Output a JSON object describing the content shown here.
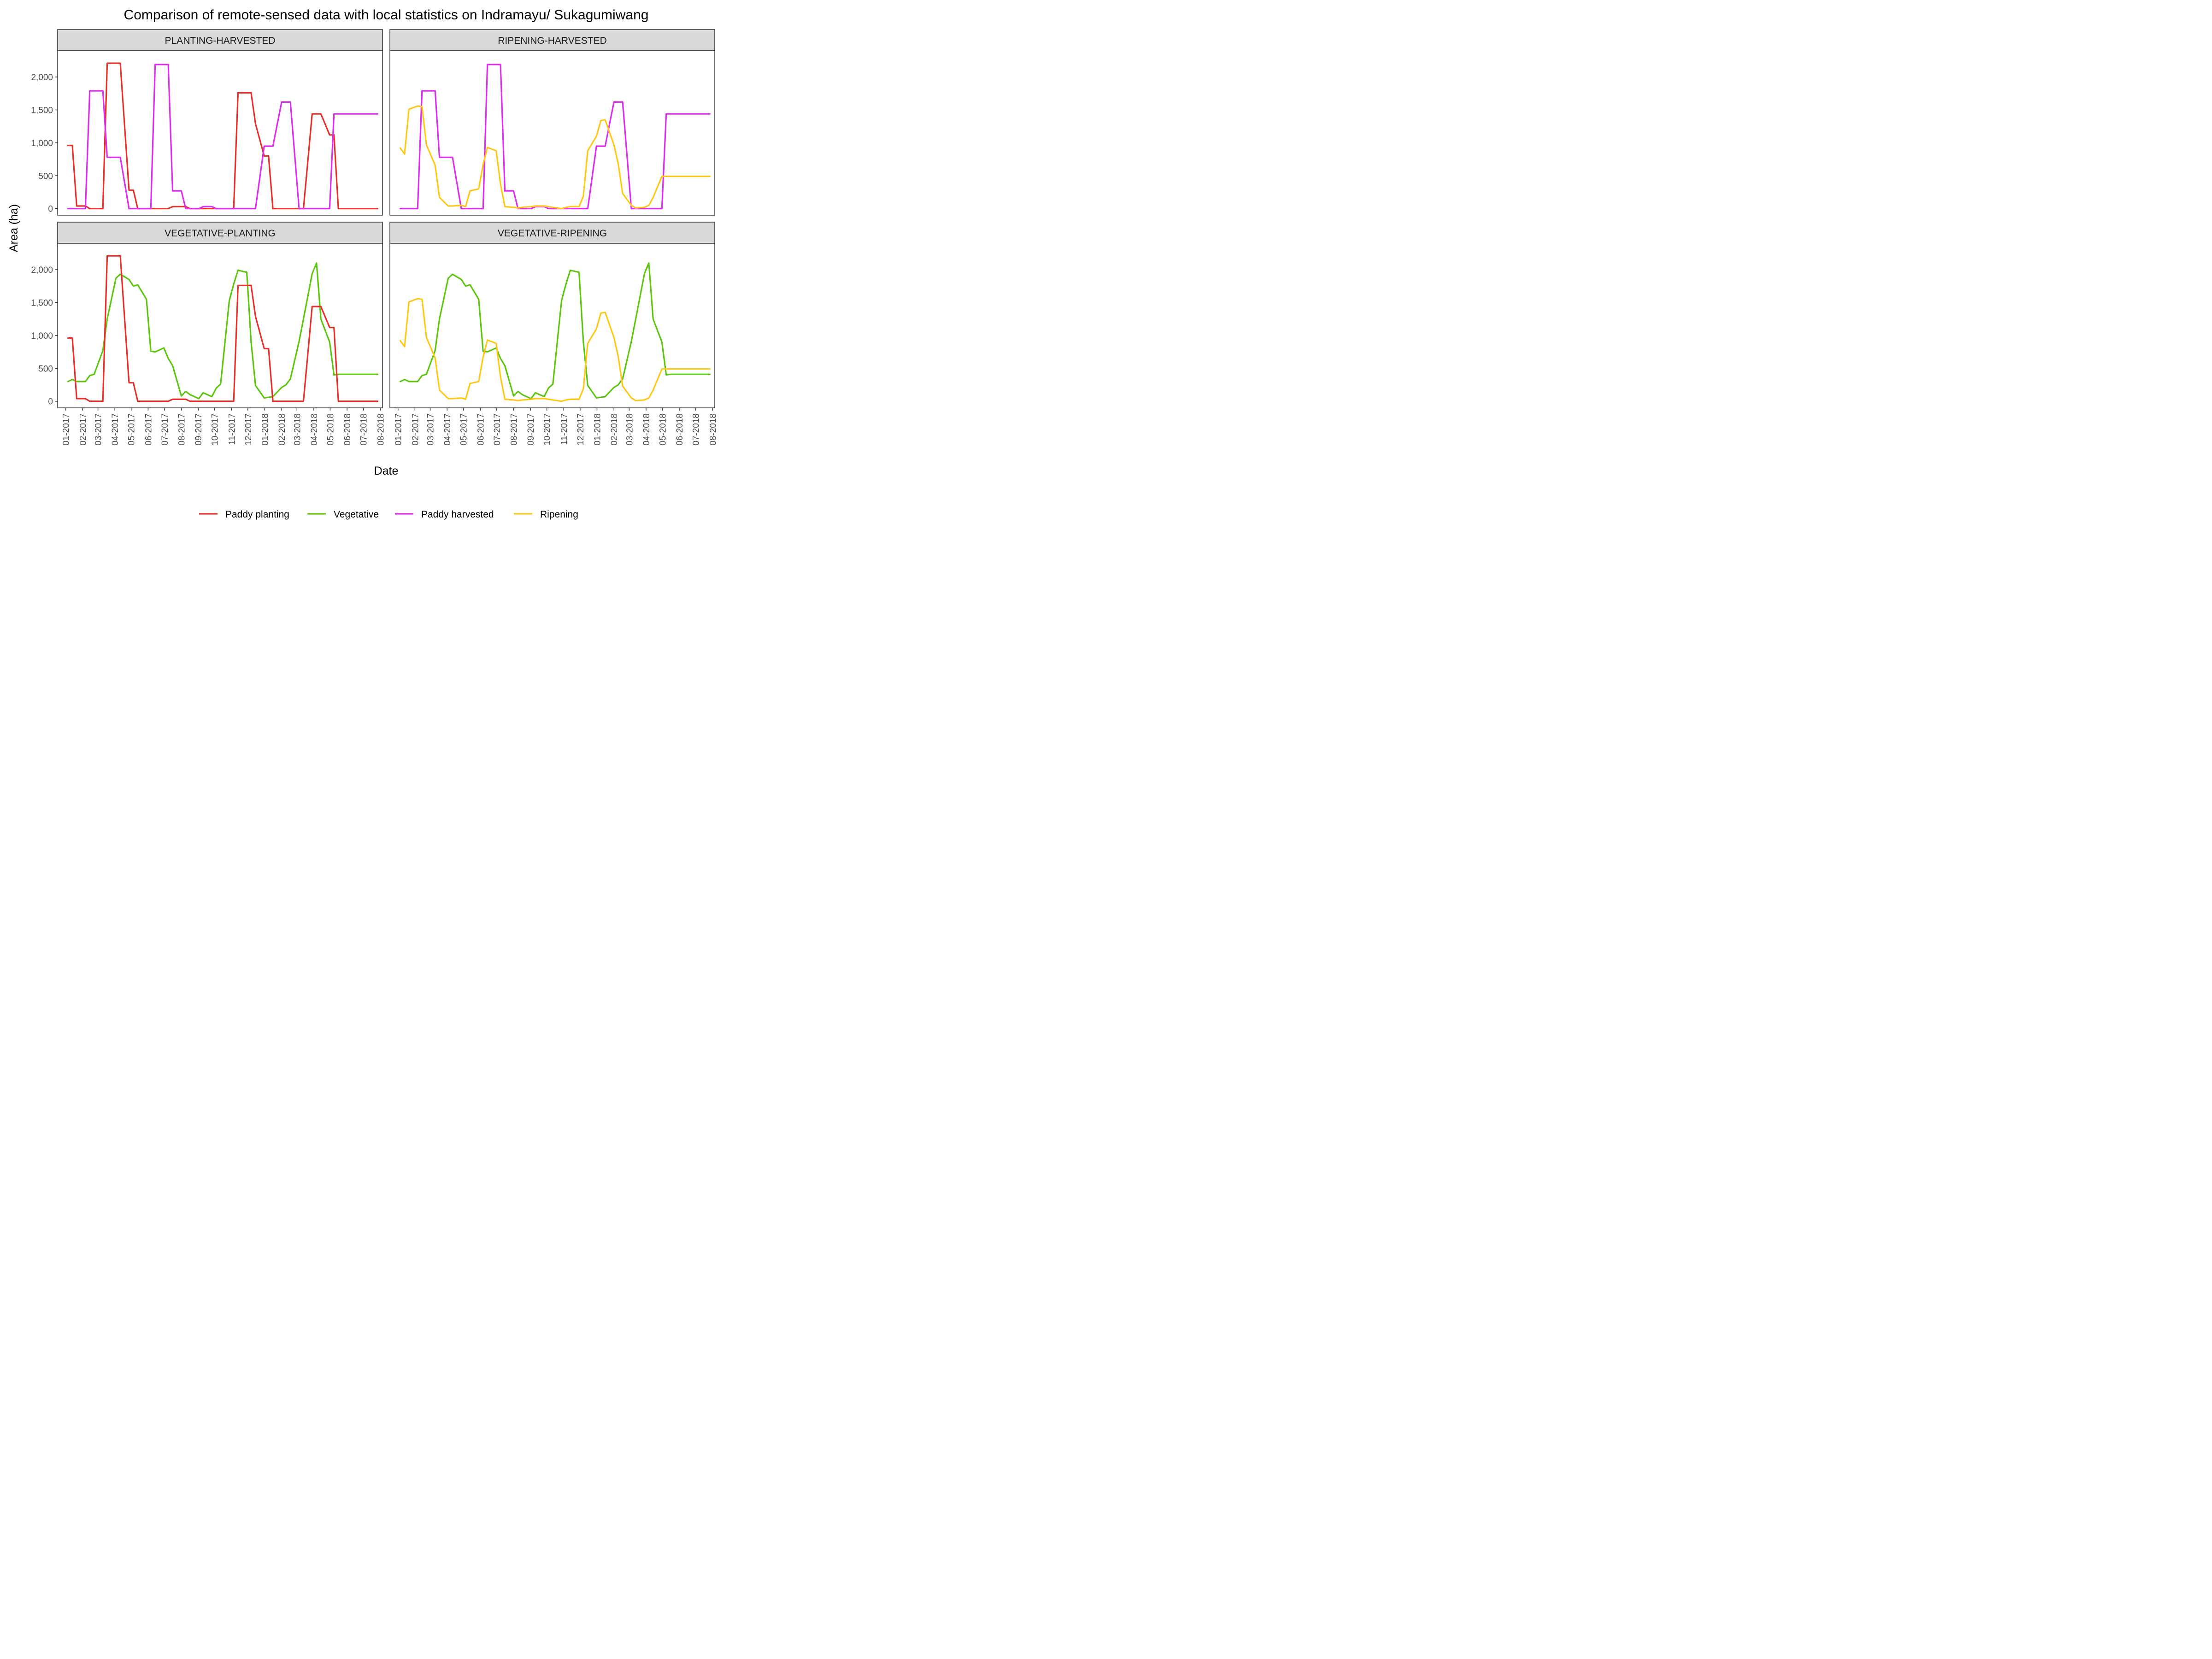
{
  "chart_data": {
    "type": "line",
    "title": "Comparison of remote-sensed data with local statistics on Indramayu/ Sukagumiwang",
    "xlabel": "Date",
    "ylabel": "Area (ha)",
    "ylim": [
      -100,
      2400
    ],
    "y_ticks": [
      0,
      500,
      1000,
      1500,
      2000
    ],
    "y_tick_labels": [
      "0",
      "500",
      "1,000",
      "1,500",
      "2,000"
    ],
    "x_ticks": [
      "2017-01-01",
      "2017-02-01",
      "2017-03-01",
      "2017-04-01",
      "2017-05-01",
      "2017-06-01",
      "2017-07-01",
      "2017-08-01",
      "2017-09-01",
      "2017-10-01",
      "2017-11-01",
      "2017-12-01",
      "2018-01-01",
      "2018-02-01",
      "2018-03-01",
      "2018-04-01",
      "2018-05-01",
      "2018-06-01",
      "2018-07-01",
      "2018-08-01"
    ],
    "x_tick_labels": [
      "01-2017",
      "02-2017",
      "03-2017",
      "04-2017",
      "05-2017",
      "06-2017",
      "07-2017",
      "08-2017",
      "09-2017",
      "10-2017",
      "11-2017",
      "12-2017",
      "01-2018",
      "02-2018",
      "03-2018",
      "04-2018",
      "05-2018",
      "06-2018",
      "07-2018",
      "08-2018"
    ],
    "xlim": [
      "2016-12-17",
      "2018-08-05"
    ],
    "grid": false,
    "legend_position": "bottom",
    "series_styles": {
      "Paddy planting": "#E8302A",
      "Vegetative": "#5CC610",
      "Paddy harvested": "#DD2EEE",
      "Ripening": "#FFC819"
    },
    "legend_order": [
      "Paddy planting",
      "Vegetative",
      "Paddy harvested",
      "Ripening"
    ],
    "series": [
      {
        "name": "Paddy planting",
        "x": [
          "2017-01-05",
          "2017-01-13",
          "2017-01-21",
          "2017-02-06",
          "2017-02-14",
          "2017-02-22",
          "2017-03-10",
          "2017-03-18",
          "2017-04-03",
          "2017-04-11",
          "2017-04-27",
          "2017-05-05",
          "2017-05-13",
          "2017-05-29",
          "2017-06-06",
          "2017-06-14",
          "2017-06-30",
          "2017-07-08",
          "2017-07-16",
          "2017-08-01",
          "2017-08-09",
          "2017-08-17",
          "2017-09-02",
          "2017-09-10",
          "2017-09-26",
          "2017-10-04",
          "2017-10-12",
          "2017-10-28",
          "2017-11-05",
          "2017-11-13",
          "2017-11-29",
          "2017-12-07",
          "2017-12-15",
          "2017-12-31",
          "2018-01-08",
          "2018-01-16",
          "2018-02-01",
          "2018-02-09",
          "2018-02-17",
          "2018-03-05",
          "2018-03-13",
          "2018-03-29",
          "2018-04-06",
          "2018-04-14",
          "2018-04-30",
          "2018-05-08",
          "2018-05-16",
          "2018-06-01",
          "2018-06-09",
          "2018-06-17",
          "2018-07-03",
          "2018-07-11",
          "2018-07-27"
        ],
        "values": [
          960,
          960,
          40,
          40,
          0,
          0,
          0,
          2210,
          2210,
          2210,
          280,
          280,
          0,
          0,
          0,
          0,
          0,
          0,
          30,
          30,
          30,
          0,
          0,
          0,
          0,
          0,
          0,
          0,
          0,
          1760,
          1760,
          1760,
          1290,
          800,
          800,
          0,
          0,
          0,
          0,
          0,
          0,
          1440,
          1440,
          1440,
          1120,
          1120,
          0,
          0,
          0,
          0,
          0,
          0,
          0
        ]
      },
      {
        "name": "Vegetative",
        "x": [
          "2017-01-05",
          "2017-01-13",
          "2017-01-21",
          "2017-02-06",
          "2017-02-14",
          "2017-02-22",
          "2017-03-10",
          "2017-03-18",
          "2017-04-03",
          "2017-04-11",
          "2017-04-27",
          "2017-05-05",
          "2017-05-13",
          "2017-05-29",
          "2017-06-06",
          "2017-06-14",
          "2017-06-30",
          "2017-07-08",
          "2017-07-16",
          "2017-08-01",
          "2017-08-09",
          "2017-08-17",
          "2017-09-02",
          "2017-09-10",
          "2017-09-26",
          "2017-10-04",
          "2017-10-12",
          "2017-10-28",
          "2017-11-05",
          "2017-11-13",
          "2017-11-29",
          "2017-12-07",
          "2017-12-15",
          "2017-12-31",
          "2018-01-08",
          "2018-01-16",
          "2018-02-01",
          "2018-02-09",
          "2018-02-17",
          "2018-03-05",
          "2018-03-13",
          "2018-03-29",
          "2018-04-06",
          "2018-04-14",
          "2018-04-30",
          "2018-05-08",
          "2018-05-16",
          "2018-06-01",
          "2018-06-09",
          "2018-06-17",
          "2018-07-03",
          "2018-07-11",
          "2018-07-27"
        ],
        "values": [
          300,
          330,
          300,
          300,
          390,
          410,
          770,
          1250,
          1870,
          1930,
          1850,
          1750,
          1770,
          1550,
          760,
          750,
          810,
          650,
          540,
          80,
          150,
          100,
          40,
          130,
          70,
          200,
          260,
          1530,
          1780,
          1990,
          1960,
          900,
          240,
          50,
          60,
          70,
          210,
          250,
          340,
          910,
          1250,
          1940,
          2100,
          1250,
          900,
          400,
          410,
          410,
          410,
          410,
          410,
          410,
          410
        ]
      },
      {
        "name": "Paddy harvested",
        "x": [
          "2017-01-05",
          "2017-01-13",
          "2017-01-21",
          "2017-02-06",
          "2017-02-14",
          "2017-02-22",
          "2017-03-10",
          "2017-03-18",
          "2017-04-03",
          "2017-04-11",
          "2017-04-27",
          "2017-05-05",
          "2017-05-13",
          "2017-05-29",
          "2017-06-06",
          "2017-06-14",
          "2017-06-30",
          "2017-07-08",
          "2017-07-16",
          "2017-08-01",
          "2017-08-09",
          "2017-08-17",
          "2017-09-02",
          "2017-09-10",
          "2017-09-26",
          "2017-10-04",
          "2017-10-12",
          "2017-10-28",
          "2017-11-05",
          "2017-11-13",
          "2017-11-29",
          "2017-12-07",
          "2017-12-15",
          "2017-12-31",
          "2018-01-08",
          "2018-01-16",
          "2018-02-01",
          "2018-02-09",
          "2018-02-17",
          "2018-03-05",
          "2018-03-13",
          "2018-03-29",
          "2018-04-06",
          "2018-04-14",
          "2018-04-30",
          "2018-05-08",
          "2018-05-16",
          "2018-06-01",
          "2018-06-09",
          "2018-06-17",
          "2018-07-03",
          "2018-07-11",
          "2018-07-27"
        ],
        "values": [
          0,
          0,
          0,
          0,
          1790,
          1790,
          1790,
          780,
          780,
          780,
          0,
          0,
          0,
          0,
          0,
          2190,
          2190,
          2190,
          270,
          270,
          0,
          0,
          0,
          30,
          30,
          0,
          0,
          0,
          0,
          0,
          0,
          0,
          0,
          950,
          950,
          950,
          1620,
          1620,
          1620,
          0,
          0,
          0,
          0,
          0,
          0,
          1440,
          1440,
          1440,
          1440,
          1440,
          1440,
          1440,
          1440
        ]
      },
      {
        "name": "Ripening",
        "x": [
          "2017-01-05",
          "2017-01-13",
          "2017-01-21",
          "2017-02-06",
          "2017-02-14",
          "2017-02-22",
          "2017-03-10",
          "2017-03-18",
          "2017-04-03",
          "2017-04-11",
          "2017-04-27",
          "2017-05-05",
          "2017-05-13",
          "2017-05-29",
          "2017-06-06",
          "2017-06-14",
          "2017-06-30",
          "2017-07-08",
          "2017-07-16",
          "2017-08-01",
          "2017-08-09",
          "2017-08-17",
          "2017-09-02",
          "2017-09-10",
          "2017-09-26",
          "2017-10-04",
          "2017-10-12",
          "2017-10-28",
          "2017-11-05",
          "2017-11-13",
          "2017-11-29",
          "2017-12-07",
          "2017-12-15",
          "2017-12-31",
          "2018-01-08",
          "2018-01-16",
          "2018-02-01",
          "2018-02-09",
          "2018-02-17",
          "2018-03-05",
          "2018-03-13",
          "2018-03-29",
          "2018-04-06",
          "2018-04-14",
          "2018-04-30",
          "2018-05-08",
          "2018-05-16",
          "2018-06-01",
          "2018-06-09",
          "2018-06-17",
          "2018-07-03",
          "2018-07-11",
          "2018-07-27"
        ],
        "values": [
          920,
          830,
          1510,
          1560,
          1550,
          970,
          660,
          170,
          40,
          40,
          50,
          30,
          270,
          300,
          670,
          930,
          880,
          370,
          30,
          20,
          10,
          20,
          30,
          40,
          40,
          30,
          20,
          0,
          20,
          30,
          30,
          190,
          880,
          1100,
          1340,
          1350,
          970,
          680,
          230,
          50,
          10,
          20,
          50,
          170,
          490,
          490,
          490,
          490,
          490,
          490,
          490,
          490,
          490
        ]
      }
    ],
    "facets": [
      {
        "label": "PLANTING-HARVESTED",
        "series": [
          "Paddy planting",
          "Paddy harvested"
        ]
      },
      {
        "label": "RIPENING-HARVESTED",
        "series": [
          "Paddy harvested",
          "Ripening"
        ]
      },
      {
        "label": "VEGETATIVE-PLANTING",
        "series": [
          "Vegetative",
          "Paddy planting"
        ]
      },
      {
        "label": "VEGETATIVE-RIPENING",
        "series": [
          "Vegetative",
          "Ripening"
        ]
      }
    ]
  }
}
